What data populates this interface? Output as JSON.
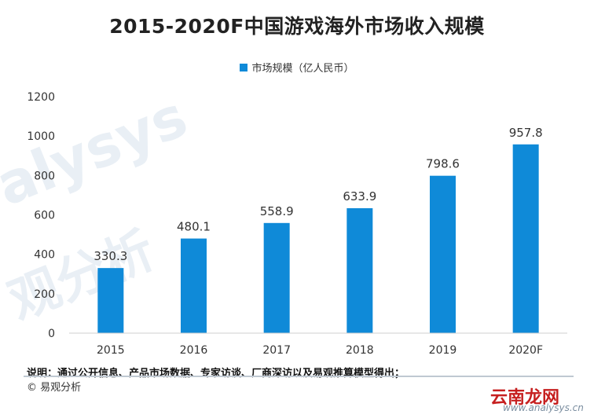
{
  "chart_data": {
    "type": "bar",
    "title": "2015-2020F中国游戏海外市场收入规模",
    "categories": [
      "2015",
      "2016",
      "2017",
      "2018",
      "2019",
      "2020F"
    ],
    "series": [
      {
        "name": "市场规模（亿人民币）",
        "values": [
          330.3,
          480.1,
          558.9,
          633.9,
          798.6,
          957.8
        ]
      }
    ],
    "value_labels": [
      "330.3",
      "480.1",
      "558.9",
      "633.9",
      "798.6",
      "957.8"
    ],
    "ylim": [
      0,
      1200
    ],
    "yticks": [
      0,
      200,
      400,
      600,
      800,
      1000,
      1200
    ],
    "grid": false,
    "legend_position": "top",
    "bar_color": "#0f8ad8"
  },
  "watermark": {
    "line1": "alysys",
    "line2": "观分析"
  },
  "footer": {
    "note": "说明：通过公开信息、产品市场数据、专家访谈、厂商深访以及易观推算模型得出；",
    "source": "© 易观分析",
    "stamp_text": "云南龙网",
    "url_text": "www.analysys.cn"
  }
}
